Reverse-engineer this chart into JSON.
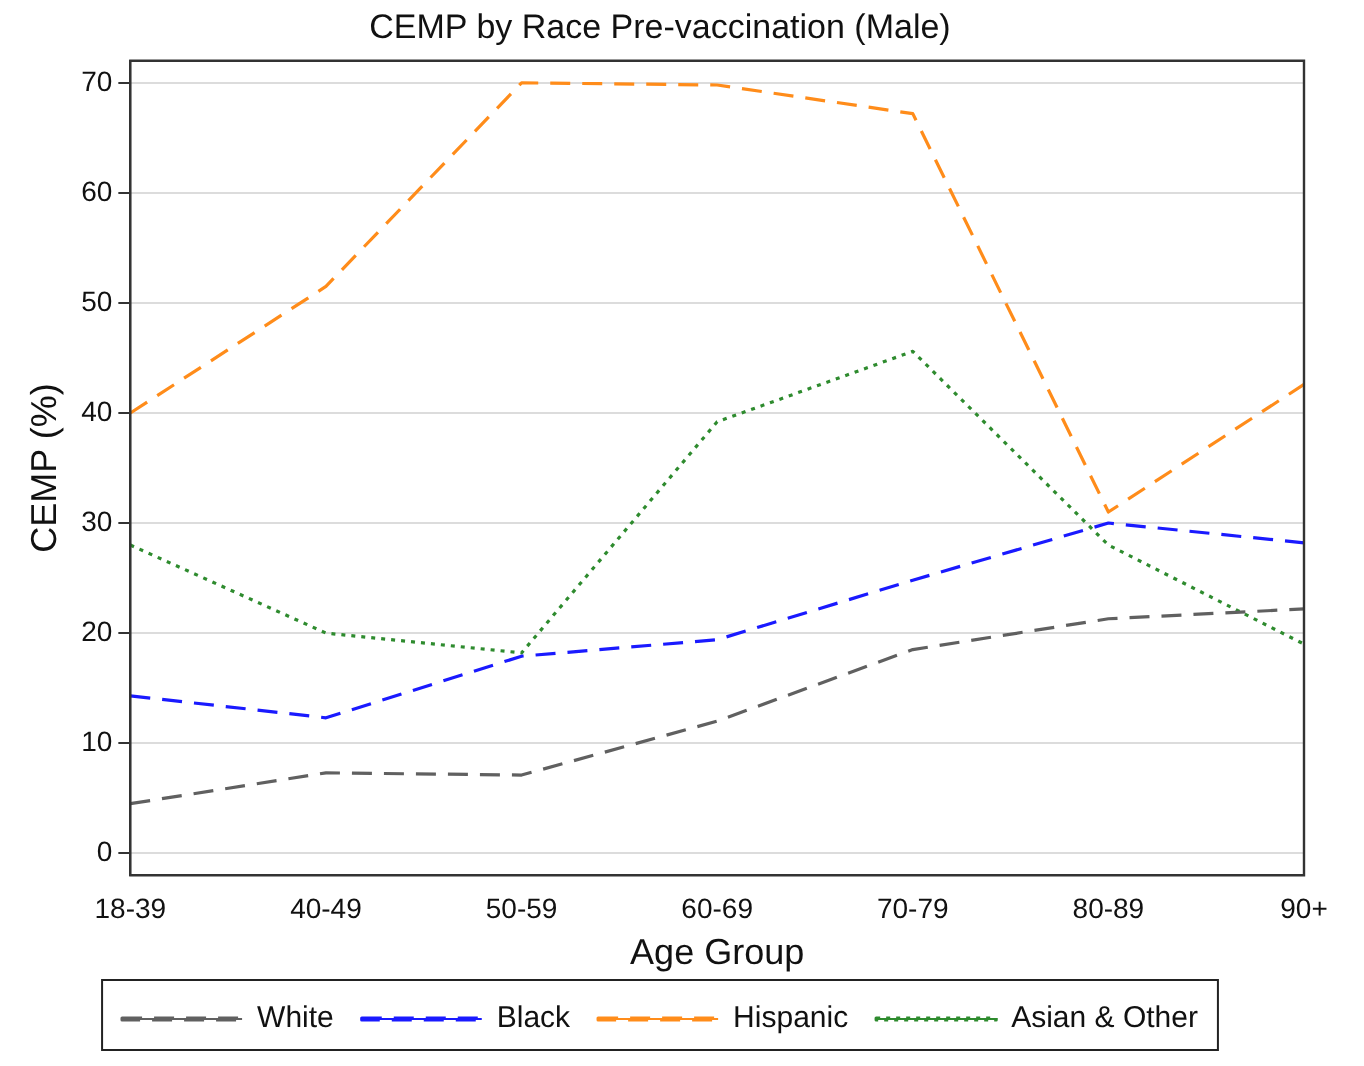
{
  "chart_data": {
    "type": "line",
    "title": "CEMP by Race Pre-vaccination (Male)",
    "xlabel": "Age Group",
    "ylabel": "CEMP (%)",
    "categories": [
      "18-39",
      "40-49",
      "50-59",
      "60-69",
      "70-79",
      "80-89",
      "90+"
    ],
    "series": [
      {
        "name": "White",
        "color": "#606060",
        "line_style": "dashed",
        "values": [
          4.5,
          7.3,
          7.1,
          12,
          18.5,
          21.3,
          22.2
        ]
      },
      {
        "name": "Black",
        "color": "#1a1aff",
        "line_style": "dashed",
        "values": [
          14.3,
          12.3,
          17.9,
          19.4,
          24.8,
          30,
          28.2
        ]
      },
      {
        "name": "Hispanic",
        "color": "#ff8c1a",
        "line_style": "dashed",
        "values": [
          40,
          51.5,
          70,
          69.8,
          67.2,
          31,
          42.6
        ]
      },
      {
        "name": "Asian & Other",
        "color": "#2e8b2e",
        "line_style": "dotted",
        "values": [
          28,
          20,
          18.2,
          39.2,
          45.6,
          28,
          19
        ]
      }
    ],
    "ylim": [
      -2,
      72
    ],
    "yticks": [
      0,
      10,
      20,
      30,
      40,
      50,
      60,
      70
    ],
    "grid": "y",
    "legend": "bottom",
    "marker": "none"
  }
}
